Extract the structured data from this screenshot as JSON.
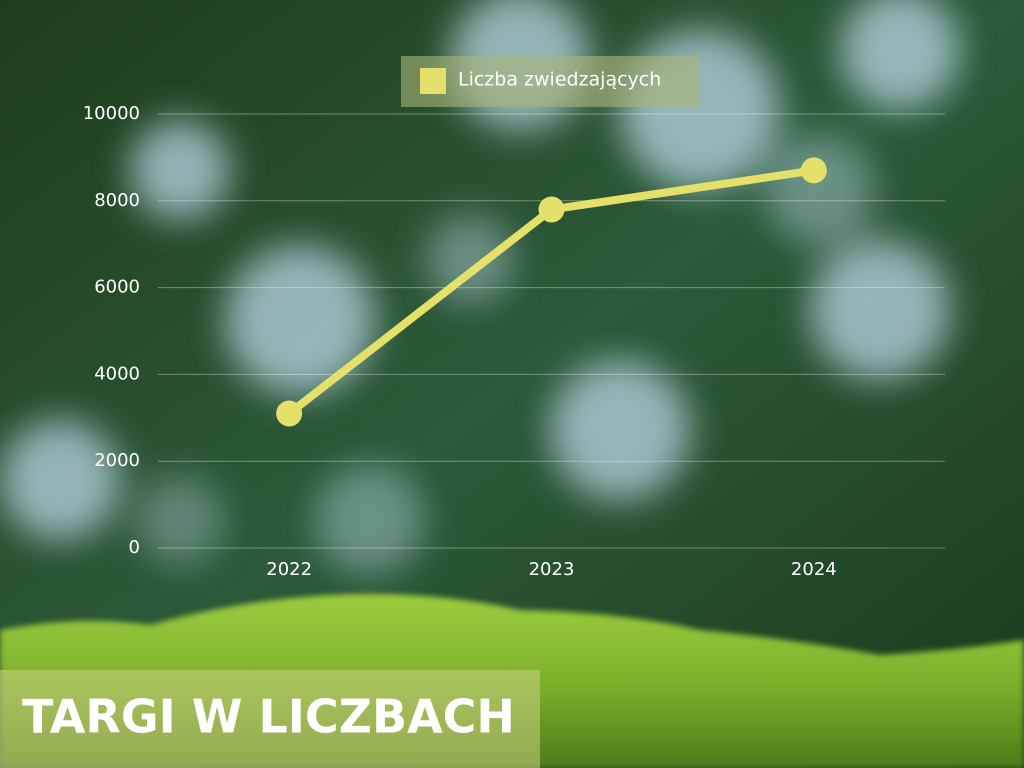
{
  "chart_data": {
    "type": "line",
    "title": "TARGI W LICZBACH",
    "categories": [
      "2022",
      "2023",
      "2024"
    ],
    "series": [
      {
        "name": "Liczba zwiedzających",
        "color": "#e4e06a",
        "values": [
          3100,
          7800,
          8700
        ]
      }
    ],
    "ylim": [
      0,
      10000
    ],
    "yticks": [
      0,
      2000,
      4000,
      6000,
      8000,
      10000
    ],
    "grid": true,
    "legend": "top"
  }
}
